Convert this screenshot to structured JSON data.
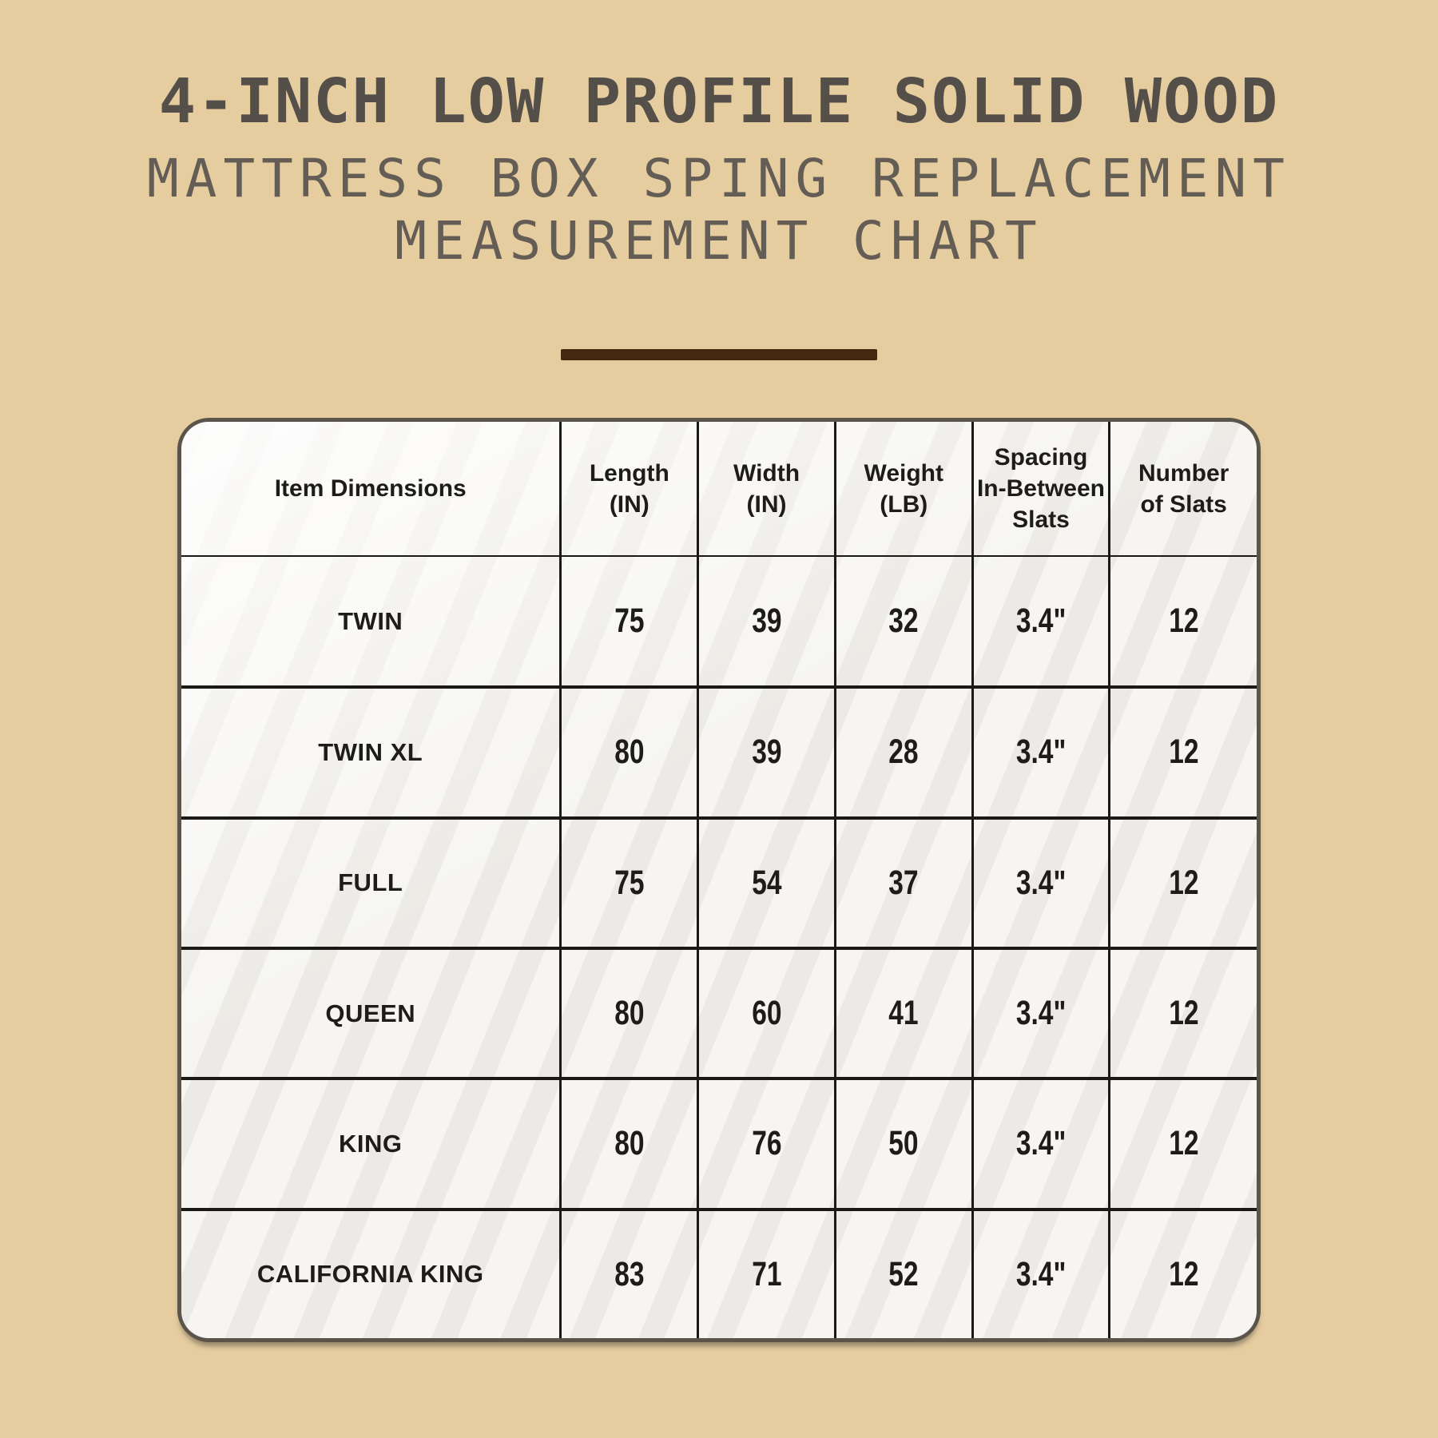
{
  "header": {
    "title_line1": "4-INCH LOW PROFILE SOLID WOOD",
    "subtitle_line1": "MATTRESS BOX SPING REPLACEMENT",
    "subtitle_line2": "MEASUREMENT CHART"
  },
  "colors": {
    "background": "#e6cda0",
    "title_text": "#544f49",
    "subtitle_text": "#645d55",
    "divider": "#44280f",
    "table_background": "#f6f5f2",
    "table_outer_border": "#5a544a",
    "grid_lines": "#1b1916",
    "cell_text": "#1e1c1a"
  },
  "chart_data": {
    "type": "table",
    "title": "4-INCH LOW PROFILE SOLID WOOD MATTRESS BOX SPING REPLACEMENT MEASUREMENT CHART",
    "columns": [
      "Item Dimensions",
      "Length\n(IN)",
      "Width\n(IN)",
      "Weight\n(LB)",
      "Spacing\nIn-Between\nSlats",
      "Number\nof Slats"
    ],
    "rows": [
      {
        "size": "TWIN",
        "length_in": "75",
        "width_in": "39",
        "weight_lb": "32",
        "spacing_in_between_slats": "3.4\"",
        "number_of_slats": "12"
      },
      {
        "size": "TWIN XL",
        "length_in": "80",
        "width_in": "39",
        "weight_lb": "28",
        "spacing_in_between_slats": "3.4\"",
        "number_of_slats": "12"
      },
      {
        "size": "FULL",
        "length_in": "75",
        "width_in": "54",
        "weight_lb": "37",
        "spacing_in_between_slats": "3.4\"",
        "number_of_slats": "12"
      },
      {
        "size": "QUEEN",
        "length_in": "80",
        "width_in": "60",
        "weight_lb": "41",
        "spacing_in_between_slats": "3.4\"",
        "number_of_slats": "12"
      },
      {
        "size": "KING",
        "length_in": "80",
        "width_in": "76",
        "weight_lb": "50",
        "spacing_in_between_slats": "3.4\"",
        "number_of_slats": "12"
      },
      {
        "size": "CALIFORNIA KING",
        "length_in": "83",
        "width_in": "71",
        "weight_lb": "52",
        "spacing_in_between_slats": "3.4\"",
        "number_of_slats": "12"
      }
    ]
  }
}
